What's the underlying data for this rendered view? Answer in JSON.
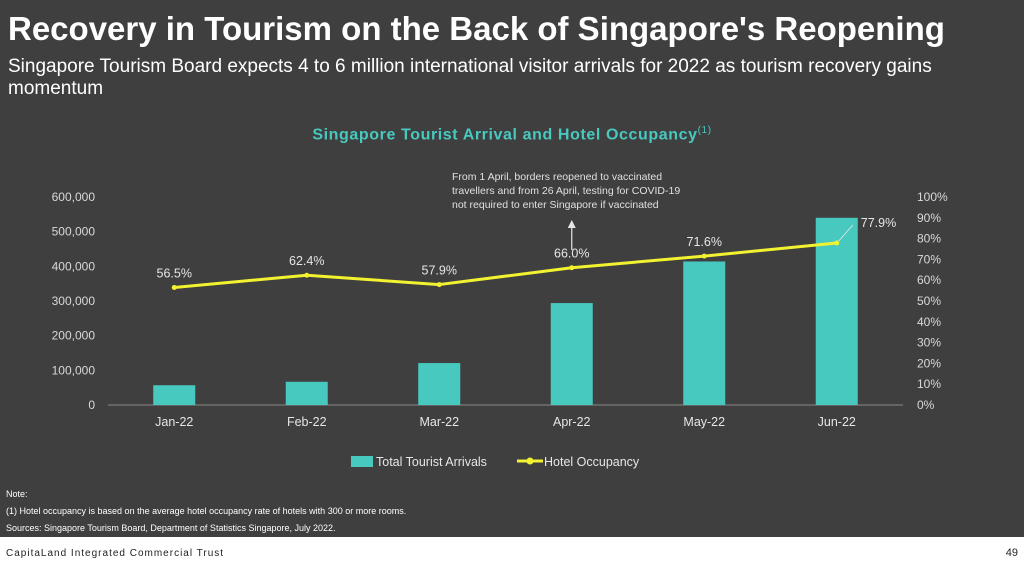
{
  "slide": {
    "title": "Recovery in Tourism on the Back of Singapore's Reopening",
    "subtitle": "Singapore Tourism Board expects 4 to 6 million international visitor arrivals for 2022 as tourism recovery gains momentum"
  },
  "colors": {
    "bar": "#48c9c0",
    "line": "#f2f230",
    "title_accent": "#48c9c0",
    "background": "#3f3f3f"
  },
  "chart_data": {
    "type": "bar",
    "title": "Singapore Tourist Arrival and Hotel Occupancy",
    "title_note": "(1)",
    "categories": [
      "Jan-22",
      "Feb-22",
      "Mar-22",
      "Apr-22",
      "May-22",
      "Jun-22"
    ],
    "series": [
      {
        "name": "Total Tourist Arrivals",
        "type": "bar",
        "axis": "left",
        "values": [
          57000,
          67000,
          121000,
          294000,
          414000,
          540000
        ]
      },
      {
        "name": "Hotel Occupancy",
        "type": "line",
        "axis": "right",
        "values": [
          56.5,
          62.4,
          57.9,
          66.0,
          71.6,
          77.9
        ],
        "labels": [
          "56.5%",
          "62.4%",
          "57.9%",
          "66.0%",
          "71.6%",
          "77.9%"
        ]
      }
    ],
    "y_left": {
      "lim": [
        0,
        600000
      ],
      "ticks": [
        0,
        100000,
        200000,
        300000,
        400000,
        500000,
        600000
      ],
      "tick_labels": [
        "0",
        "100,000",
        "200,000",
        "300,000",
        "400,000",
        "500,000",
        "600,000"
      ]
    },
    "y_right": {
      "lim": [
        0,
        100
      ],
      "ticks": [
        0,
        10,
        20,
        30,
        40,
        50,
        60,
        70,
        80,
        90,
        100
      ],
      "tick_labels": [
        "0%",
        "10%",
        "20%",
        "30%",
        "40%",
        "50%",
        "60%",
        "70%",
        "80%",
        "90%",
        "100%"
      ]
    },
    "annotation": {
      "lines": [
        "From 1 April, borders reopened to vaccinated",
        "travellers and from 26 April, testing for COVID-19",
        "not required to enter Singapore if vaccinated"
      ],
      "category": "Apr-22"
    },
    "legend_position": "bottom",
    "grid": false
  },
  "notes": {
    "heading": "Note:",
    "note_1": "(1)   Hotel occupancy is based on the average hotel occupancy rate of hotels with 300 or more rooms.",
    "sources": "Sources: Singapore Tourism Board, Department of Statistics Singapore, July 2022."
  },
  "footer": {
    "company": "CapitaLand Integrated Commercial Trust",
    "page": "49"
  }
}
